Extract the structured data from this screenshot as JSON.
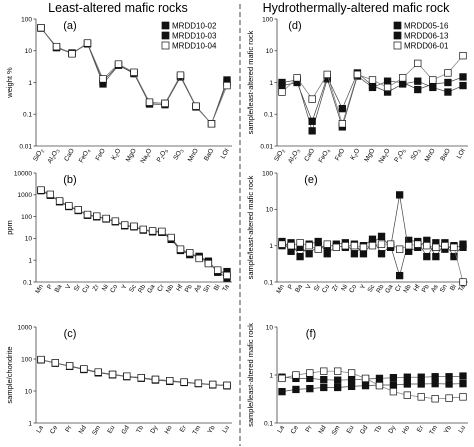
{
  "figure": {
    "left_title": "Least-altered mafic rocks",
    "right_title": "Hydrothermally-altered mafic rock"
  },
  "chart_data": [
    {
      "id": "a",
      "panel_label": "(a)",
      "type": "line",
      "yscale": "log",
      "ylabel": "weight %",
      "ylim": [
        0.01,
        100
      ],
      "yticks": [
        "0.01",
        "0.1",
        "1",
        "10",
        "100"
      ],
      "categories": [
        "SiO2",
        "Al2O3",
        "CaO",
        "FeO4",
        "FeO",
        "K2O",
        "MgO",
        "Na2O",
        "P2O5",
        "SO3",
        "MnO",
        "BaO",
        "LOI"
      ],
      "series": [
        {
          "name": "MRDD10-02",
          "marker": "filled",
          "values": [
            52,
            13,
            8.5,
            17,
            1.1,
            3.6,
            2.0,
            0.23,
            0.22,
            1.6,
            0.18,
            0.05,
            1.2
          ]
        },
        {
          "name": "MRDD10-03",
          "marker": "filled",
          "values": [
            52,
            12.5,
            8.2,
            16.5,
            0.9,
            3.5,
            1.9,
            0.21,
            0.2,
            1.5,
            0.17,
            0.05,
            1.0
          ]
        },
        {
          "name": "MRDD10-04",
          "marker": "open",
          "values": [
            53,
            13.5,
            8.0,
            17.5,
            1.3,
            3.8,
            2.1,
            0.24,
            0.22,
            1.7,
            0.18,
            0.05,
            0.8
          ]
        }
      ]
    },
    {
      "id": "b",
      "panel_label": "(b)",
      "type": "line",
      "yscale": "log",
      "ylabel": "ppm",
      "ylim": [
        0.1,
        10000
      ],
      "yticks": [
        "0.1",
        "1",
        "10",
        "100",
        "1000",
        "10000"
      ],
      "categories": [
        "Mn",
        "P",
        "Ba",
        "V",
        "Sr",
        "Cu",
        "Zr",
        "Ni",
        "Co",
        "Y",
        "Sc",
        "Rb",
        "Ga",
        "Cr",
        "Nb",
        "Hf",
        "Pb",
        "As",
        "Sn",
        "Bi",
        "Ta"
      ],
      "series": [
        {
          "name": "MRDD10-02",
          "marker": "filled",
          "values": [
            1600,
            1000,
            500,
            300,
            200,
            120,
            100,
            80,
            60,
            40,
            35,
            25,
            21,
            20,
            10,
            3,
            2,
            1.5,
            0.9,
            0.3,
            0.15
          ]
        },
        {
          "name": "MRDD10-03",
          "marker": "filled",
          "values": [
            1550,
            950,
            480,
            290,
            190,
            115,
            98,
            78,
            58,
            38,
            34,
            24,
            20,
            19,
            9,
            2.8,
            1.8,
            1.4,
            0.8,
            0.28,
            0.3
          ]
        },
        {
          "name": "MRDD10-04",
          "marker": "open",
          "values": [
            1650,
            1050,
            520,
            310,
            205,
            125,
            105,
            82,
            62,
            41,
            36,
            26,
            22,
            21,
            11,
            3.2,
            2.2,
            1.2,
            0.7,
            0.35,
            0.2
          ]
        }
      ]
    },
    {
      "id": "c",
      "panel_label": "(c)",
      "type": "line",
      "yscale": "log",
      "ylabel": "sample/chondrite",
      "ylim": [
        1,
        1000
      ],
      "yticks": [
        "1",
        "10",
        "100",
        "1000"
      ],
      "categories": [
        "La",
        "Ce",
        "Pr",
        "Nd",
        "Sm",
        "Eu",
        "Gd",
        "Tb",
        "Dy",
        "Ho",
        "Er",
        "Tm",
        "Yb",
        "Lu"
      ],
      "series": [
        {
          "name": "MRDD10-02",
          "marker": "filled",
          "values": [
            95,
            75,
            60,
            48,
            38,
            33,
            29,
            26,
            23,
            21,
            19,
            17.5,
            16,
            15
          ]
        },
        {
          "name": "MRDD10-03",
          "marker": "filled",
          "values": [
            94,
            74,
            59,
            47,
            37,
            32,
            28,
            25,
            22,
            20,
            18.5,
            17,
            15.5,
            14.5
          ]
        },
        {
          "name": "MRDD10-04",
          "marker": "open",
          "values": [
            96,
            76,
            61,
            49,
            39,
            33,
            29,
            26,
            23,
            21,
            19,
            17.5,
            16,
            15
          ]
        }
      ]
    },
    {
      "id": "d",
      "panel_label": "(d)",
      "type": "line",
      "yscale": "log",
      "ylabel": "sample/least-altered mafic rock",
      "ylim": [
        0.01,
        100
      ],
      "yticks": [
        "0.01",
        "0.1",
        "1",
        "10",
        "100"
      ],
      "categories": [
        "SiO2",
        "Al2O3",
        "CaO",
        "FeO4",
        "FeO",
        "K2O",
        "MgO",
        "Na2O",
        "P2O5",
        "SO3",
        "MnO",
        "BaO",
        "LOI"
      ],
      "series": [
        {
          "name": "MRDD05-16",
          "marker": "filled",
          "values": [
            1.0,
            1.2,
            0.03,
            1.3,
            0.04,
            1.6,
            0.7,
            1.1,
            1.0,
            0.6,
            0.9,
            1.0,
            1.5
          ]
        },
        {
          "name": "MRDD06-13",
          "marker": "filled",
          "values": [
            0.8,
            1.0,
            0.06,
            1.5,
            0.15,
            2.0,
            0.8,
            0.5,
            0.9,
            1.1,
            0.7,
            0.5,
            0.8
          ]
        },
        {
          "name": "MRDD06-01",
          "marker": "open",
          "values": [
            0.5,
            1.4,
            0.3,
            1.8,
            0.05,
            1.8,
            1.2,
            0.7,
            1.4,
            4.0,
            1.2,
            2.0,
            7.0
          ]
        }
      ]
    },
    {
      "id": "e",
      "panel_label": "(e)",
      "type": "line",
      "yscale": "log",
      "ylabel": "sample/least-altered mafic rock",
      "ylim": [
        0.1,
        100
      ],
      "yticks": [
        "0.1",
        "1",
        "10",
        "100"
      ],
      "categories": [
        "Mn",
        "P",
        "Ba",
        "V",
        "Sr",
        "Cu",
        "Zr",
        "Ni",
        "Co",
        "Y",
        "Sc",
        "Rb",
        "Ga",
        "Cr",
        "Nb",
        "Hf",
        "Pb",
        "As",
        "Sn",
        "Bi",
        "Ta"
      ],
      "series": [
        {
          "name": "MRDD05-16",
          "marker": "filled",
          "values": [
            1.3,
            0.7,
            0.9,
            0.6,
            1.0,
            0.9,
            1.1,
            1.2,
            0.6,
            1.0,
            1.5,
            0.6,
            1.0,
            0.15,
            1.4,
            1.3,
            0.5,
            1.2,
            0.8,
            1.0,
            0.9
          ]
        },
        {
          "name": "MRDD06-13",
          "marker": "filled",
          "values": [
            1.0,
            1.2,
            0.5,
            1.1,
            1.3,
            0.6,
            1.0,
            0.9,
            1.1,
            0.6,
            1.2,
            1.8,
            0.9,
            25,
            0.7,
            0.9,
            1.4,
            0.5,
            1.2,
            0.5,
            1.1
          ]
        },
        {
          "name": "MRDD06-01",
          "marker": "open",
          "values": [
            1.1,
            1.0,
            1.2,
            1.0,
            0.8,
            1.1,
            0.9,
            1.0,
            1.0,
            0.9,
            1.0,
            1.1,
            1.1,
            0.8,
            1.0,
            1.1,
            1.0,
            0.9,
            1.0,
            0.9,
            0.1
          ]
        }
      ]
    },
    {
      "id": "f",
      "panel_label": "(f)",
      "type": "line",
      "yscale": "log",
      "ylabel": "sample/least-altered mafic rock",
      "ylim": [
        0.1,
        10
      ],
      "yticks": [
        "0.1",
        "1",
        "10"
      ],
      "categories": [
        "La",
        "Ce",
        "Pr",
        "Nd",
        "Sm",
        "Eu",
        "Gd",
        "Tb",
        "Dy",
        "Ho",
        "Er",
        "Tm",
        "Yb",
        "Lu"
      ],
      "series": [
        {
          "name": "MRDD05-16",
          "marker": "filled",
          "values": [
            0.9,
            0.85,
            0.85,
            0.8,
            0.78,
            0.8,
            0.82,
            0.85,
            0.88,
            0.9,
            0.9,
            0.92,
            0.92,
            0.95
          ]
        },
        {
          "name": "MRDD06-13",
          "marker": "filled",
          "values": [
            0.45,
            0.5,
            0.52,
            0.55,
            0.55,
            0.58,
            0.6,
            0.62,
            0.62,
            0.65,
            0.65,
            0.66,
            0.65,
            0.66
          ]
        },
        {
          "name": "MRDD06-01",
          "marker": "open",
          "values": [
            0.85,
            1.0,
            1.1,
            1.2,
            1.2,
            1.1,
            0.85,
            0.6,
            0.45,
            0.38,
            0.35,
            0.32,
            0.33,
            0.35
          ]
        }
      ]
    }
  ]
}
